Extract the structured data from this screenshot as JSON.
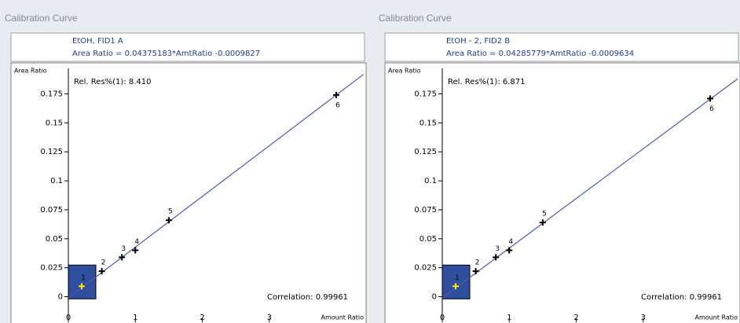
{
  "chart_data": [
    {
      "type": "scatter",
      "panel_title": "Calibration Curve",
      "title": "EtOH, FID1 A",
      "subtitle": "Area Ratio = 0.04375183*AmtRatio -0.0009827",
      "annotations": [
        "Rel. Res%(1): 8.410",
        "Correlation: 0.99961"
      ],
      "x_label": "Amount Ratio",
      "y_label": "Area Ratio",
      "x": [
        0.2,
        0.5,
        0.8,
        1.0,
        1.5,
        4.0
      ],
      "values": [
        0.009,
        0.022,
        0.034,
        0.04,
        0.066,
        0.174
      ],
      "point_labels": [
        "1",
        "2",
        "3",
        "4",
        "5",
        "6"
      ],
      "color": "#000000",
      "fit": {
        "slope": 0.04375183,
        "intercept": -0.0009827,
        "color": "#4a5aa8"
      },
      "xlim": [
        0,
        4.41
      ],
      "xticks": [
        0,
        1,
        2,
        3
      ],
      "ylim": [
        -0.022,
        0.197
      ],
      "yticks": [
        0,
        0.025,
        0.05,
        0.075,
        0.1,
        0.125,
        0.15,
        0.175
      ]
    },
    {
      "type": "scatter",
      "panel_title": "Calibration Curve",
      "title": "EtOH - 2, FID2 B",
      "subtitle": "Area Ratio = 0.04285779*AmtRatio -0.0009634",
      "annotations": [
        "Rel. Res%(1): 6.871",
        "Correlation: 0.99961"
      ],
      "x_label": "Amount Ratio",
      "y_label": "Area Ratio",
      "x": [
        0.2,
        0.5,
        0.8,
        1.0,
        1.5,
        4.0
      ],
      "values": [
        0.009,
        0.022,
        0.034,
        0.04,
        0.064,
        0.171
      ],
      "point_labels": [
        "1",
        "2",
        "3",
        "4",
        "5",
        "6"
      ],
      "color": "#000000",
      "fit": {
        "slope": 0.04285779,
        "intercept": -0.0009634,
        "color": "#4a5aa8"
      },
      "xlim": [
        0,
        4.41
      ],
      "xticks": [
        0,
        1,
        2,
        3
      ],
      "ylim": [
        -0.022,
        0.197
      ],
      "yticks": [
        0,
        0.025,
        0.05,
        0.075,
        0.1,
        0.125,
        0.15,
        0.175
      ]
    }
  ]
}
